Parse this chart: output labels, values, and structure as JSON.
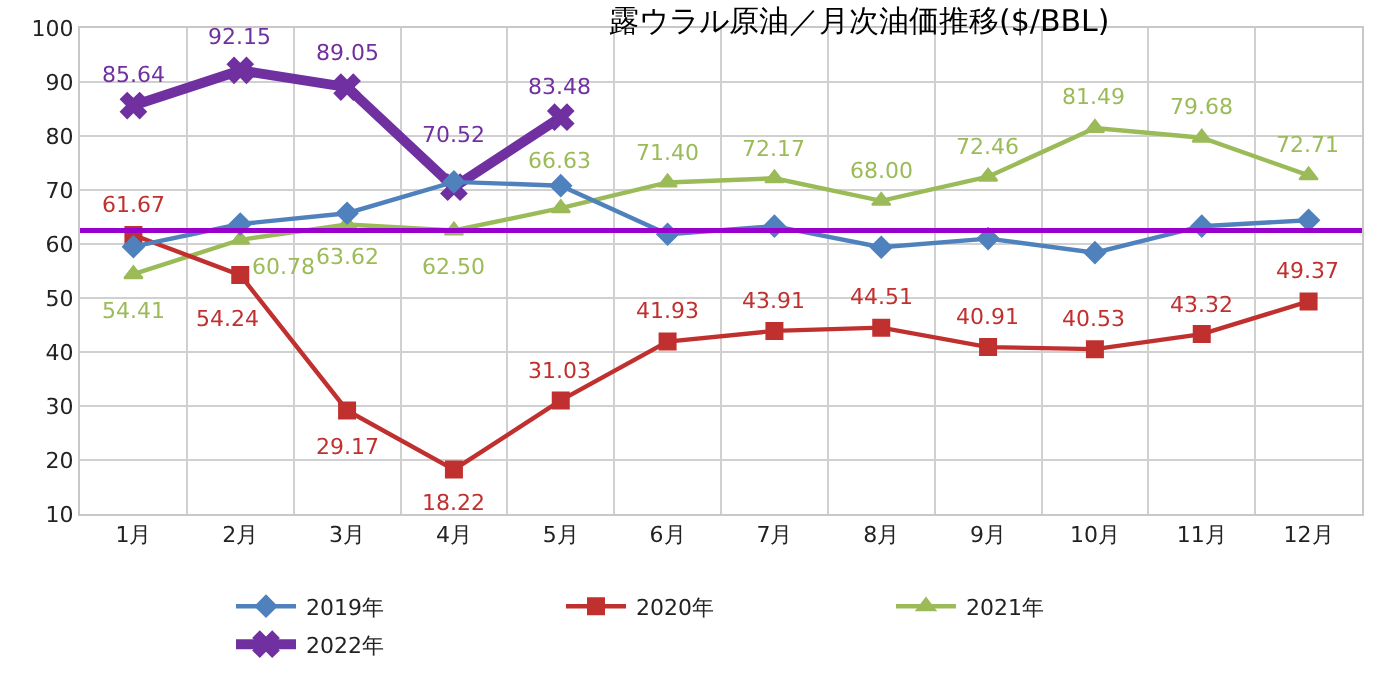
{
  "chart_data": {
    "type": "line",
    "title": "露ウラル原油／月次油価推移($/BBL)",
    "categories": [
      "1月",
      "2月",
      "3月",
      "4月",
      "5月",
      "6月",
      "7月",
      "8月",
      "9月",
      "10月",
      "11月",
      "12月"
    ],
    "series": [
      {
        "name": "2019年",
        "color": "#4f81bd",
        "marker": "diamond",
        "values": [
          59.5,
          63.7,
          65.7,
          71.5,
          70.8,
          61.8,
          63.3,
          59.4,
          61.0,
          58.4,
          63.3,
          64.4
        ]
      },
      {
        "name": "2020年",
        "color": "#c0302f",
        "marker": "square",
        "values": [
          61.67,
          54.24,
          29.17,
          18.22,
          31.03,
          41.93,
          43.91,
          44.51,
          40.91,
          40.53,
          43.32,
          49.37
        ],
        "value_labels": [
          "61.67",
          "54.24",
          "29.17",
          "18.22",
          "31.03",
          "41.93",
          "43.91",
          "44.51",
          "40.91",
          "40.53",
          "43.32",
          "49.37"
        ]
      },
      {
        "name": "2021年",
        "color": "#9bbb59",
        "marker": "triangle",
        "values": [
          54.41,
          60.78,
          63.62,
          62.5,
          66.63,
          71.4,
          72.17,
          68.0,
          72.46,
          81.49,
          79.68,
          72.71
        ],
        "value_labels": [
          "54.41",
          "60.78",
          "63.62",
          "62.50",
          "66.63",
          "71.40",
          "72.17",
          "68.00",
          "72.46",
          "81.49",
          "79.68",
          "72.71"
        ]
      },
      {
        "name": "2022年",
        "color": "#7030a0",
        "marker": "cross",
        "values": [
          85.64,
          92.15,
          89.05,
          70.52,
          83.48,
          null,
          null,
          null,
          null,
          null,
          null,
          null
        ],
        "value_labels": [
          "85.64",
          "92.15",
          "89.05",
          "70.52",
          "83.48",
          null,
          null,
          null,
          null,
          null,
          null,
          null
        ]
      }
    ],
    "ref_lines": [
      {
        "axis": "y",
        "value": 62.5,
        "color": "#9900cc"
      }
    ],
    "ylim": [
      10,
      100
    ],
    "yticks": [
      10,
      20,
      30,
      40,
      50,
      60,
      70,
      80,
      90,
      100
    ],
    "grid": true,
    "legend": "bottom"
  }
}
